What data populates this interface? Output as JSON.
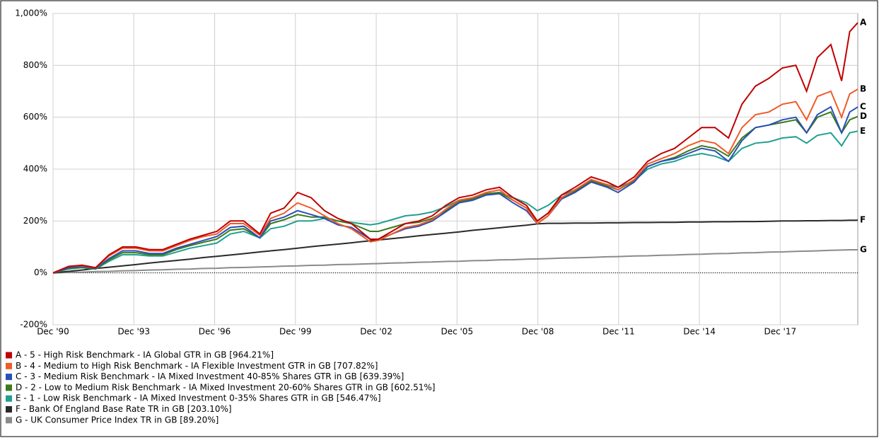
{
  "chart_data": {
    "type": "line",
    "x": [
      1990.92,
      1991.5,
      1992,
      1992.5,
      1993,
      1993.5,
      1994,
      1994.5,
      1995,
      1995.5,
      1996,
      1996.5,
      1997,
      1997.5,
      1998,
      1998.6,
      1999,
      1999.5,
      2000,
      2000.5,
      2001,
      2001.5,
      2002,
      2002.7,
      2003,
      2003.5,
      2004,
      2004.5,
      2005,
      2005.5,
      2006,
      2006.5,
      2007,
      2007.5,
      2008,
      2008.5,
      2008.9,
      2009.3,
      2009.8,
      2010.3,
      2010.9,
      2011.5,
      2011.9,
      2012.5,
      2013,
      2013.5,
      2014,
      2014.5,
      2015,
      2015.5,
      2016,
      2016.5,
      2017,
      2017.5,
      2018,
      2018.5,
      2018.9,
      2019.3,
      2019.8,
      2020.2,
      2020.5,
      2020.8
    ],
    "xlim": [
      1990.92,
      2020.8
    ],
    "xticks": [
      {
        "value": 1990.92,
        "label": "Dec '90"
      },
      {
        "value": 1993.92,
        "label": "Dec '93"
      },
      {
        "value": 1996.92,
        "label": "Dec '96"
      },
      {
        "value": 1999.92,
        "label": "Dec '99"
      },
      {
        "value": 2002.92,
        "label": "Dec '02"
      },
      {
        "value": 2005.92,
        "label": "Dec '05"
      },
      {
        "value": 2008.92,
        "label": "Dec '08"
      },
      {
        "value": 2011.92,
        "label": "Dec '11"
      },
      {
        "value": 2014.92,
        "label": "Dec '14"
      },
      {
        "value": 2017.92,
        "label": "Dec '17"
      }
    ],
    "ylim": [
      -200,
      1000
    ],
    "yticks": [
      {
        "value": -200,
        "label": "-200%"
      },
      {
        "value": 0,
        "label": "0%"
      },
      {
        "value": 200,
        "label": "200%"
      },
      {
        "value": 400,
        "label": "400%"
      },
      {
        "value": 600,
        "label": "600%"
      },
      {
        "value": 800,
        "label": "800%"
      },
      {
        "value": 1000,
        "label": "1,000%"
      }
    ],
    "grid": true,
    "series": [
      {
        "name": "A - 5 - High Risk Benchmark - IA Global GTR in GB [964.21%]",
        "label": "A",
        "color": "#c00000",
        "values": [
          0,
          25,
          30,
          20,
          70,
          100,
          100,
          90,
          90,
          110,
          130,
          145,
          160,
          200,
          200,
          150,
          230,
          250,
          310,
          290,
          240,
          210,
          190,
          130,
          130,
          160,
          190,
          200,
          220,
          260,
          290,
          300,
          320,
          330,
          290,
          260,
          200,
          230,
          300,
          330,
          370,
          350,
          330,
          370,
          430,
          460,
          480,
          520,
          560,
          560,
          520,
          650,
          720,
          750,
          790,
          800,
          700,
          830,
          880,
          740,
          930,
          964.21
        ]
      },
      {
        "name": "B - 4 - Medium to High Risk Benchmark - IA Flexible Investment GTR in GB [707.82%]",
        "label": "B",
        "color": "#f05a28",
        "values": [
          0,
          25,
          28,
          20,
          65,
          95,
          95,
          85,
          85,
          105,
          125,
          140,
          150,
          190,
          190,
          145,
          210,
          230,
          270,
          250,
          220,
          190,
          170,
          120,
          125,
          150,
          175,
          185,
          205,
          245,
          280,
          290,
          310,
          320,
          280,
          250,
          190,
          220,
          290,
          320,
          360,
          340,
          320,
          360,
          420,
          440,
          460,
          490,
          510,
          500,
          460,
          560,
          610,
          620,
          650,
          660,
          590,
          680,
          700,
          600,
          690,
          707.82
        ]
      },
      {
        "name": "C - 3 - Medium Risk Benchmark - IA Mixed Investment 40-85% Shares GTR in GB [639.39%]",
        "label": "C",
        "color": "#2a4fb8",
        "values": [
          0,
          20,
          25,
          18,
          55,
          85,
          85,
          75,
          75,
          95,
          110,
          125,
          140,
          175,
          180,
          135,
          200,
          215,
          240,
          225,
          210,
          185,
          175,
          130,
          130,
          150,
          170,
          180,
          200,
          235,
          270,
          280,
          300,
          305,
          270,
          240,
          190,
          220,
          285,
          310,
          350,
          330,
          310,
          350,
          410,
          430,
          440,
          460,
          480,
          470,
          430,
          510,
          560,
          570,
          590,
          600,
          540,
          610,
          640,
          540,
          620,
          639.39
        ]
      },
      {
        "name": "D - 2 - Low to Medium Risk Benchmark - IA Mixed Investment 20-60% Shares GTR in GB [602.51%]",
        "label": "D",
        "color": "#3a7a1a",
        "values": [
          0,
          18,
          22,
          16,
          50,
          78,
          78,
          70,
          70,
          90,
          105,
          118,
          130,
          165,
          170,
          135,
          190,
          205,
          225,
          215,
          215,
          200,
          190,
          160,
          160,
          175,
          190,
          195,
          210,
          240,
          275,
          285,
          305,
          310,
          280,
          250,
          200,
          230,
          290,
          315,
          355,
          335,
          320,
          355,
          410,
          430,
          445,
          470,
          490,
          480,
          450,
          520,
          560,
          570,
          580,
          590,
          540,
          600,
          620,
          540,
          590,
          602.51
        ]
      },
      {
        "name": "E - 1 - Low Risk Benchmark - IA Mixed Investment 0-35% Shares GTR in GB [546.47%]",
        "label": "E",
        "color": "#20a090",
        "values": [
          0,
          15,
          20,
          15,
          45,
          70,
          70,
          65,
          65,
          80,
          95,
          105,
          115,
          150,
          160,
          135,
          170,
          180,
          200,
          200,
          210,
          200,
          195,
          185,
          190,
          205,
          220,
          225,
          235,
          255,
          280,
          290,
          305,
          310,
          290,
          270,
          240,
          260,
          300,
          320,
          355,
          340,
          330,
          355,
          400,
          420,
          430,
          450,
          460,
          450,
          430,
          480,
          500,
          505,
          520,
          525,
          500,
          530,
          540,
          490,
          540,
          546.47
        ]
      },
      {
        "name": "F - Bank Of England Base Rate TR in GB [203.10%]",
        "label": "F",
        "color": "#2a2a2a",
        "values": [
          0,
          6,
          11,
          17,
          22,
          27,
          32,
          38,
          43,
          48,
          53,
          59,
          64,
          69,
          74,
          81,
          85,
          90,
          95,
          101,
          106,
          111,
          116,
          124,
          127,
          132,
          137,
          143,
          148,
          153,
          158,
          164,
          169,
          174,
          179,
          184,
          189,
          191,
          191,
          192,
          192,
          193,
          193,
          194,
          194,
          195,
          195,
          196,
          196,
          197,
          197,
          198,
          198,
          199,
          200,
          200,
          201,
          201,
          202,
          202,
          203,
          203.1
        ]
      },
      {
        "name": "G - UK Consumer Price Index TR in GB [89.20%]",
        "label": "G",
        "color": "#8a8a8a",
        "values": [
          0,
          2,
          3,
          5,
          6,
          8,
          9,
          11,
          12,
          14,
          15,
          17,
          18,
          20,
          21,
          23,
          24,
          26,
          27,
          29,
          30,
          32,
          33,
          35,
          36,
          38,
          39,
          41,
          42,
          44,
          45,
          47,
          48,
          50,
          51,
          53,
          54,
          55,
          57,
          58,
          60,
          62,
          63,
          65,
          66,
          68,
          69,
          71,
          72,
          74,
          75,
          77,
          78,
          80,
          81,
          83,
          84,
          85,
          87,
          88,
          89,
          89.2
        ]
      }
    ]
  }
}
